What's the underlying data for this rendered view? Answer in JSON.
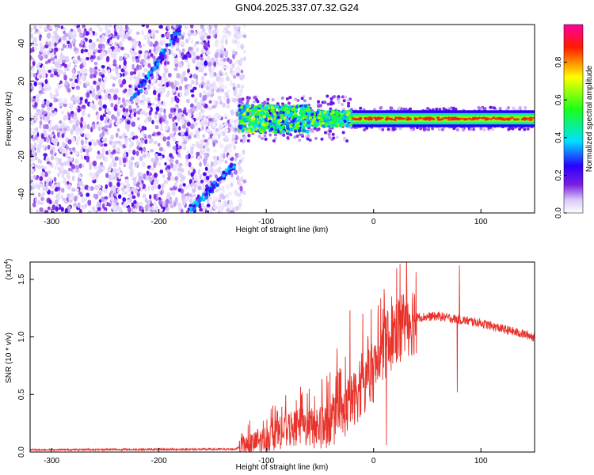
{
  "title": "GN04.2025.337.07.32.G24",
  "chart_data": [
    {
      "type": "heatmap",
      "name": "spectrogram",
      "xlabel": "Height of straight line (km)",
      "ylabel": "Frequency (Hz)",
      "xlim": [
        -320,
        150
      ],
      "ylim": [
        -50,
        50
      ],
      "xticks": [
        -300,
        -200,
        -100,
        0,
        100
      ],
      "xtick_labels": [
        "-300",
        "-200",
        "-100",
        "0",
        "100"
      ],
      "yticks": [
        -40,
        -20,
        0,
        20,
        40
      ],
      "ytick_labels": [
        "-40",
        "-20",
        "0",
        "20",
        "40"
      ],
      "colorbar": {
        "label": "Normalized spectral amplitude",
        "range": [
          0,
          1
        ],
        "ticks": [
          0,
          0.2,
          0.4,
          0.6,
          0.8
        ],
        "tick_labels": [
          "0.0",
          "0.2",
          "0.4",
          "0.6",
          "0.8"
        ],
        "colormap": "rainbow (white-purple-blue-cyan-green-yellow-red-magenta)"
      },
      "features": [
        {
          "name": "main carrier",
          "x_range": [
            -125,
            150
          ],
          "frequency_center": 0,
          "amplitude_peak": 1.0
        },
        {
          "name": "aliased line upper",
          "x_start": -225,
          "y_start": 10,
          "x_end": -180,
          "y_end": 48
        },
        {
          "name": "aliased line lower",
          "x_start": -170,
          "y_start": -48,
          "x_end": -130,
          "y_end": -25
        },
        {
          "name": "noise field",
          "x_range": [
            -320,
            -120
          ],
          "frequency_range": [
            -50,
            50
          ]
        }
      ]
    },
    {
      "type": "line",
      "name": "snr",
      "xlabel": "Height of straight line (km)",
      "ylabel": "SNR (10 * v/v)",
      "scale_label": "(x10",
      "scale_exp": "4",
      "scale_close": ")",
      "xlim": [
        -320,
        150
      ],
      "ylim": [
        0,
        1.65
      ],
      "xticks": [
        -300,
        -200,
        -100,
        0,
        100
      ],
      "xtick_labels": [
        "-300",
        "-200",
        "-100",
        "0",
        "100"
      ],
      "yticks": [
        0,
        0.5,
        1.0,
        1.5
      ],
      "ytick_labels": [
        "0.0",
        "0.5",
        "1.0",
        "1.5"
      ],
      "series_color": "#e8322a",
      "envelope": {
        "x": [
          -320,
          -130,
          -110,
          -90,
          -70,
          -50,
          -30,
          -20,
          -10,
          0,
          10,
          20,
          30,
          40,
          60,
          80,
          100,
          120,
          150
        ],
        "snr": [
          0.02,
          0.025,
          0.08,
          0.15,
          0.22,
          0.2,
          0.3,
          0.45,
          0.55,
          0.7,
          0.9,
          1.05,
          1.13,
          1.17,
          1.18,
          1.15,
          1.12,
          1.07,
          1.0
        ]
      },
      "spikes": [
        {
          "x": -120,
          "snr": 0.12
        },
        {
          "x": -108,
          "snr": 0.2
        },
        {
          "x": -95,
          "snr": 0.3
        },
        {
          "x": -82,
          "snr": 0.42
        },
        {
          "x": -72,
          "snr": 0.45
        },
        {
          "x": -60,
          "snr": 0.55
        },
        {
          "x": -48,
          "snr": 0.62
        },
        {
          "x": -34,
          "snr": 0.9
        },
        {
          "x": -22,
          "snr": 1.23
        },
        {
          "x": -10,
          "snr": 1.2
        },
        {
          "x": 10,
          "snr": 1.35
        },
        {
          "x": 80,
          "snr": 1.62
        },
        {
          "x": 78,
          "snr": 0.52
        },
        {
          "x": 12,
          "snr": 0.06
        }
      ]
    }
  ]
}
